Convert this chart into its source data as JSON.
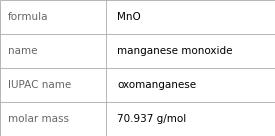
{
  "rows": [
    {
      "label": "formula",
      "value": "MnO"
    },
    {
      "label": "name",
      "value": "manganese monoxide"
    },
    {
      "label": "IUPAC name",
      "value": "oxomanganese"
    },
    {
      "label": "molar mass",
      "value": "70.937 g/mol"
    }
  ],
  "background_color": "#ffffff",
  "border_color": "#aaaaaa",
  "label_color": "#666666",
  "value_color": "#000000",
  "label_fontsize": 7.5,
  "value_fontsize": 7.5,
  "col_split": 0.385,
  "figsize": [
    2.75,
    1.36
  ],
  "dpi": 100
}
